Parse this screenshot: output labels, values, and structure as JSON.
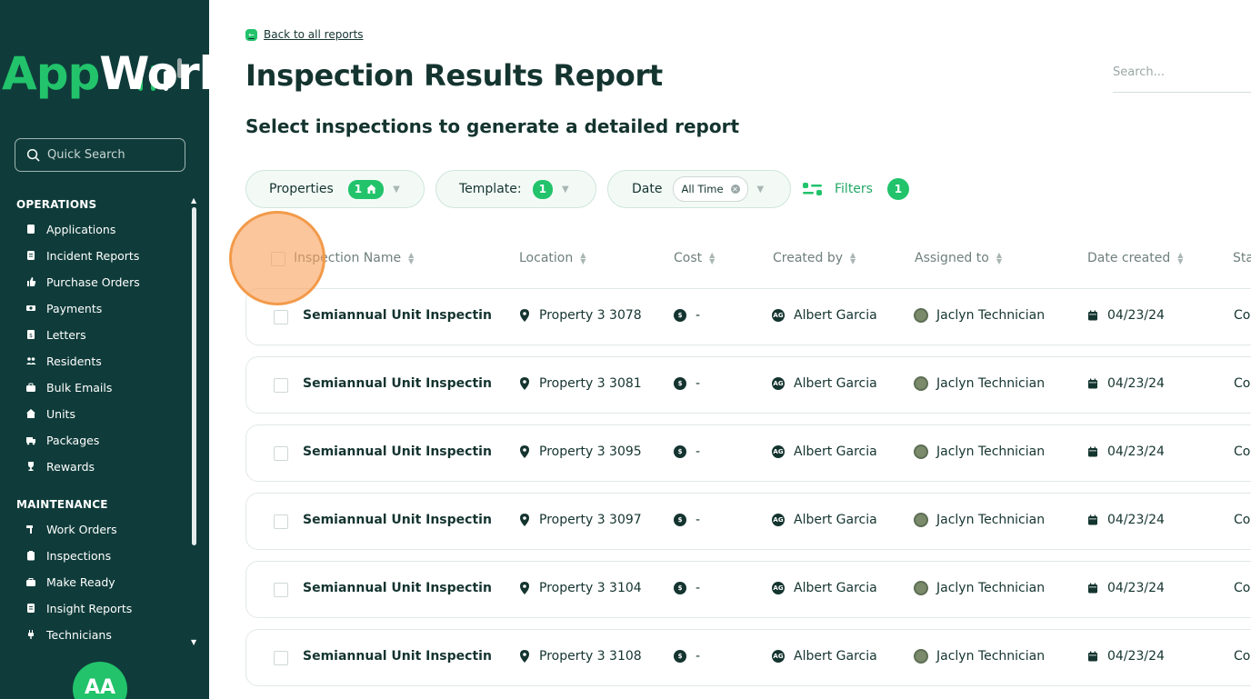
{
  "sidebar": {
    "logo": {
      "app": "App",
      "work": "Work"
    },
    "quick_search_placeholder": "Quick Search",
    "sections": [
      {
        "title": "OPERATIONS",
        "items": [
          {
            "label": "Applications",
            "icon": "document-icon"
          },
          {
            "label": "Incident Reports",
            "icon": "report-icon"
          },
          {
            "label": "Purchase Orders",
            "icon": "thumbs-up-icon"
          },
          {
            "label": "Payments",
            "icon": "cash-icon"
          },
          {
            "label": "Letters",
            "icon": "letter-icon"
          },
          {
            "label": "Residents",
            "icon": "people-icon"
          },
          {
            "label": "Bulk Emails",
            "icon": "briefcase-icon"
          },
          {
            "label": "Units",
            "icon": "home-icon"
          },
          {
            "label": "Packages",
            "icon": "truck-icon"
          },
          {
            "label": "Rewards",
            "icon": "trophy-icon"
          }
        ]
      },
      {
        "title": "MAINTENANCE",
        "items": [
          {
            "label": "Work Orders",
            "icon": "hammer-icon"
          },
          {
            "label": "Inspections",
            "icon": "clipboard-icon"
          },
          {
            "label": "Make Ready",
            "icon": "toolbox-icon"
          },
          {
            "label": "Insight Reports",
            "icon": "report-icon"
          },
          {
            "label": "Technicians",
            "icon": "plug-icon"
          }
        ]
      }
    ],
    "user_initials": "AA"
  },
  "header": {
    "back_link": "Back to all reports",
    "title": "Inspection Results Report",
    "subtitle": "Select inspections to generate a detailed report",
    "search_placeholder": "Search..."
  },
  "filters": {
    "properties": {
      "label": "Properties",
      "count": "1"
    },
    "template": {
      "label": "Template:",
      "count": "1"
    },
    "date": {
      "label": "Date",
      "value": "All Time"
    },
    "filters": {
      "label": "Filters",
      "count": "1"
    }
  },
  "table": {
    "columns": [
      "Inspection Name",
      "Location",
      "Cost",
      "Created by",
      "Assigned to",
      "Date created",
      "Sta"
    ],
    "rows": [
      {
        "name": "Semiannual Unit Inspectin",
        "location": "Property 3 3078",
        "cost": "-",
        "creator_initials": "AG",
        "creator": "Albert Garcia",
        "assignee": "Jaclyn Technician",
        "date": "04/23/24",
        "status": "Co"
      },
      {
        "name": "Semiannual Unit Inspectin",
        "location": "Property 3 3081",
        "cost": "-",
        "creator_initials": "AG",
        "creator": "Albert Garcia",
        "assignee": "Jaclyn Technician",
        "date": "04/23/24",
        "status": "Co"
      },
      {
        "name": "Semiannual Unit Inspectin",
        "location": "Property 3 3095",
        "cost": "-",
        "creator_initials": "AG",
        "creator": "Albert Garcia",
        "assignee": "Jaclyn Technician",
        "date": "04/23/24",
        "status": "Co"
      },
      {
        "name": "Semiannual Unit Inspectin",
        "location": "Property 3 3097",
        "cost": "-",
        "creator_initials": "AG",
        "creator": "Albert Garcia",
        "assignee": "Jaclyn Technician",
        "date": "04/23/24",
        "status": "Co"
      },
      {
        "name": "Semiannual Unit Inspectin",
        "location": "Property 3 3104",
        "cost": "-",
        "creator_initials": "AG",
        "creator": "Albert Garcia",
        "assignee": "Jaclyn Technician",
        "date": "04/23/24",
        "status": "Co"
      },
      {
        "name": "Semiannual Unit Inspectin",
        "location": "Property 3 3108",
        "cost": "-",
        "creator_initials": "AG",
        "creator": "Albert Garcia",
        "assignee": "Jaclyn Technician",
        "date": "04/23/24",
        "status": "Co"
      }
    ]
  },
  "colors": {
    "sidebar_bg": "#0f3c3a",
    "accent": "#22c36b",
    "text": "#14342f"
  }
}
